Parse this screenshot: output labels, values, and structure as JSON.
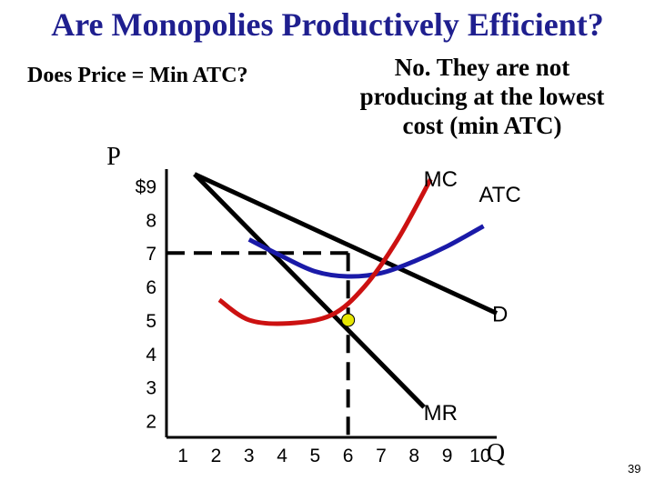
{
  "title": "Are Monopolies Productively Efficient?",
  "question": "Does Price = Min ATC?",
  "answer_lines": [
    "No. They are not",
    "producing at the lowest",
    "cost (min ATC)"
  ],
  "slide_number": "39",
  "colors": {
    "title": "#1f1f8f",
    "mc": "#cc1111",
    "atc": "#1a1aa8",
    "demand": "#000000",
    "point": "#e6e600"
  },
  "chart_data": {
    "type": "line",
    "ylabel": "P",
    "xlabel": "Q",
    "x_ticks": [
      "1",
      "2",
      "3",
      "4",
      "5",
      "6",
      "7",
      "8",
      "9",
      "10"
    ],
    "y_ticks": [
      "$9",
      "8",
      "7",
      "6",
      "5",
      "4",
      "3",
      "2"
    ],
    "xlim": [
      0.5,
      10.5
    ],
    "ylim": [
      1.5,
      9.5
    ],
    "series": [
      {
        "name": "D",
        "points": [
          [
            1.35,
            9.35
          ],
          [
            10.5,
            5.2
          ]
        ]
      },
      {
        "name": "MR",
        "points": [
          [
            1.35,
            9.35
          ],
          [
            8.3,
            2.4
          ]
        ]
      },
      {
        "name": "MC",
        "points": [
          [
            2.1,
            5.6
          ],
          [
            3.0,
            5.0
          ],
          [
            4.2,
            4.9
          ],
          [
            5.5,
            5.15
          ],
          [
            6.5,
            6.0
          ],
          [
            7.5,
            7.4
          ],
          [
            8.5,
            9.2
          ]
        ]
      },
      {
        "name": "ATC",
        "points": [
          [
            3.0,
            7.4
          ],
          [
            4.0,
            6.9
          ],
          [
            5.0,
            6.45
          ],
          [
            6.0,
            6.3
          ],
          [
            7.0,
            6.4
          ],
          [
            8.0,
            6.75
          ],
          [
            9.0,
            7.2
          ],
          [
            10.1,
            7.8
          ]
        ]
      }
    ],
    "point": {
      "x": 6,
      "y": 5
    },
    "dashed_guides": {
      "price": 7,
      "quantity": 6
    }
  }
}
